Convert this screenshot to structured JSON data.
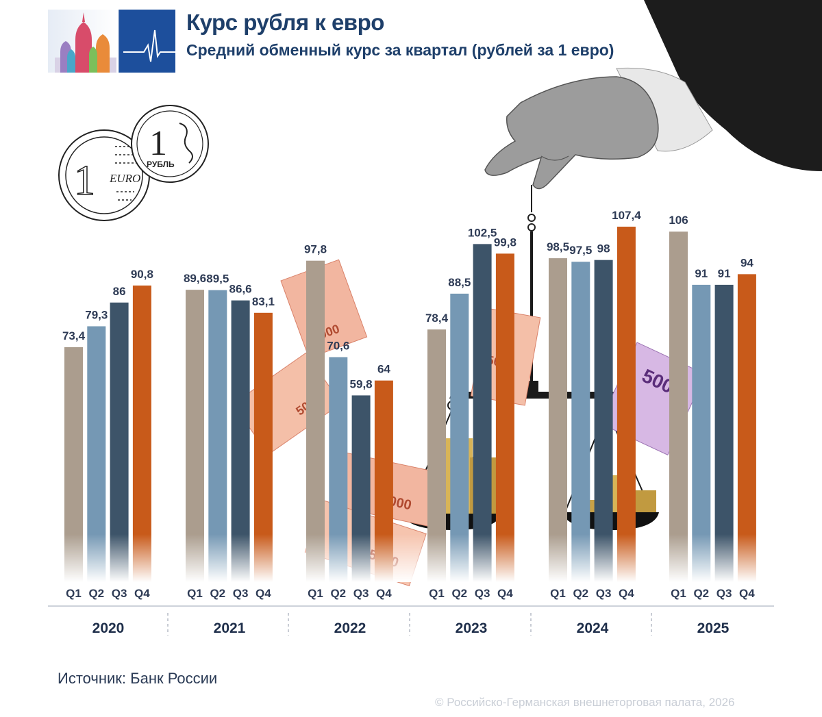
{
  "header": {
    "title": "Курс рубля к евро",
    "subtitle": "Средний обменный курс за квартал (рублей за 1 евро)"
  },
  "footer": {
    "source": "Источник: Банк России",
    "copyright": "© Российско-Германская внешнеторговая палата, 2026"
  },
  "decor": {
    "logo_icon": "onion-domes-logo-icon",
    "coin_euro_text": "EURO",
    "coin_ruble_text": "РУБЛЬ",
    "coin_ruble_value": "1",
    "coin_euro_value": "1",
    "banknote_5000": "5000",
    "banknote_500": "500",
    "scale_icon": "balance-scale-icon",
    "hand_icon": "hand-icon"
  },
  "chart_data": {
    "type": "bar",
    "title": "Курс рубля к евро",
    "subtitle": "Средний обменный курс за квартал (рублей за 1 евро)",
    "unit": "рублей за 1 евро",
    "groups": [
      "2020",
      "2021",
      "2022",
      "2023",
      "2024",
      "2025"
    ],
    "quarters": [
      "Q1",
      "Q2",
      "Q3",
      "Q4"
    ],
    "values": [
      [
        73.4,
        79.3,
        86,
        90.8
      ],
      [
        89.6,
        89.5,
        86.6,
        83.1
      ],
      [
        97.8,
        70.6,
        59.8,
        64
      ],
      [
        78.4,
        88.5,
        102.5,
        99.8
      ],
      [
        98.5,
        97.5,
        98,
        107.4
      ],
      [
        106,
        91,
        91,
        94
      ]
    ],
    "value_labels": [
      [
        "73,4",
        "79,3",
        "86",
        "90,8"
      ],
      [
        "89,6",
        "89,5",
        "86,6",
        "83,1"
      ],
      [
        "97,8",
        "70,6",
        "59,8",
        "64"
      ],
      [
        "78,4",
        "88,5",
        "102,5",
        "99,8"
      ],
      [
        "98,5",
        "97,5",
        "98",
        "107,4"
      ],
      [
        "106",
        "91",
        "91",
        "94"
      ]
    ],
    "series_colors": [
      "#ab9d8e",
      "#7598b4",
      "#3d5469",
      "#c85a1a"
    ],
    "grid": false,
    "legend": "none"
  }
}
